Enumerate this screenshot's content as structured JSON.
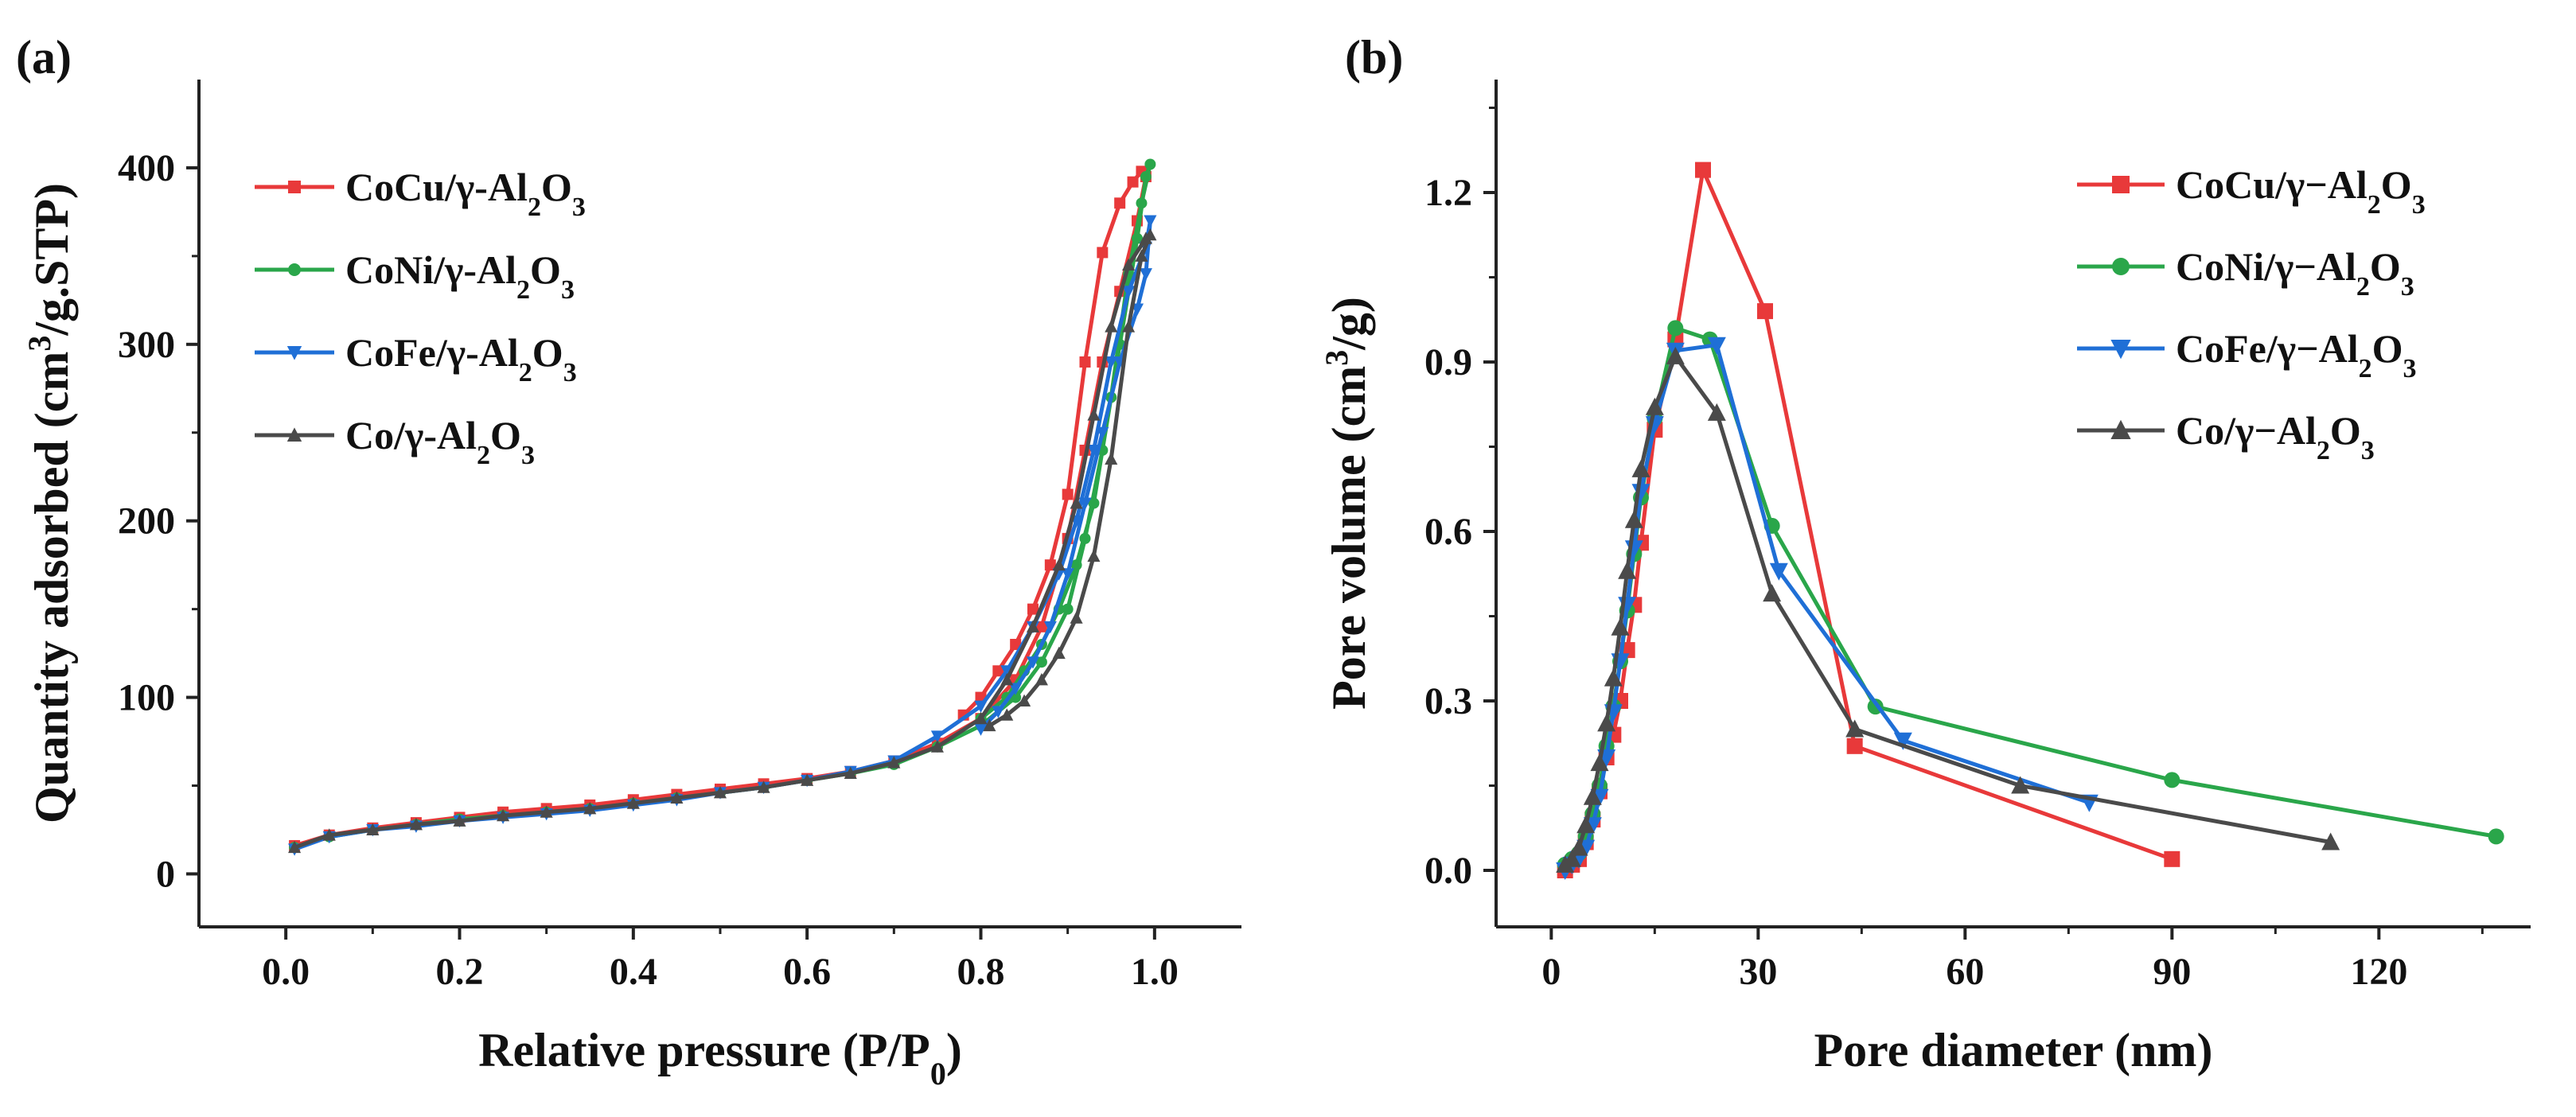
{
  "chart_data": [
    {
      "type": "line",
      "panel_label": "(a)",
      "xlabel": "Relative pressure (P/P",
      "xlabel_sub": "0",
      "xlabel_end": ")",
      "ylabel": "Quantity adsorbed (cm",
      "ylabel_sup": "3",
      "ylabel_end": "/g.STP)",
      "xlim": [
        -0.1,
        1.1
      ],
      "ylim": [
        -30,
        450
      ],
      "xticks": [
        0.0,
        0.2,
        0.4,
        0.6,
        0.8,
        1.0
      ],
      "xtick_labels": [
        "0.0",
        "0.2",
        "0.4",
        "0.6",
        "0.8",
        "1.0"
      ],
      "yticks": [
        0,
        100,
        200,
        300,
        400
      ],
      "ytick_labels": [
        "0",
        "100",
        "200",
        "300",
        "400"
      ],
      "legend_position": "top-left",
      "series": [
        {
          "name": "CoCu/γ-Al",
          "sub": "2",
          "mid": "O",
          "sub2": "3",
          "color": "#e8393a",
          "marker": "square",
          "x": [
            0.01,
            0.05,
            0.1,
            0.15,
            0.2,
            0.25,
            0.3,
            0.35,
            0.4,
            0.45,
            0.5,
            0.55,
            0.6,
            0.65,
            0.7,
            0.75,
            0.8,
            0.84,
            0.87,
            0.9,
            0.92,
            0.94,
            0.96,
            0.98,
            0.99,
            0.985,
            0.975,
            0.96,
            0.94,
            0.92,
            0.9,
            0.88,
            0.86,
            0.84,
            0.82,
            0.8,
            0.78
          ],
          "y": [
            16,
            22,
            26,
            29,
            32,
            35,
            37,
            39,
            42,
            45,
            48,
            51,
            54,
            58,
            64,
            74,
            88,
            110,
            140,
            190,
            240,
            290,
            330,
            370,
            395,
            398,
            392,
            380,
            352,
            290,
            215,
            175,
            150,
            130,
            115,
            100,
            90
          ]
        },
        {
          "name": "CoNi/γ-Al",
          "sub": "2",
          "mid": "O",
          "sub2": "3",
          "color": "#2aa64a",
          "marker": "circle",
          "x": [
            0.01,
            0.05,
            0.1,
            0.15,
            0.2,
            0.25,
            0.3,
            0.35,
            0.4,
            0.45,
            0.5,
            0.55,
            0.6,
            0.65,
            0.7,
            0.75,
            0.8,
            0.84,
            0.87,
            0.9,
            0.92,
            0.94,
            0.96,
            0.98,
            0.99,
            0.995,
            0.985,
            0.97,
            0.95,
            0.93,
            0.91,
            0.89,
            0.87,
            0.85,
            0.83,
            0.8
          ],
          "y": [
            15,
            21,
            25,
            28,
            31,
            33,
            35,
            37,
            40,
            43,
            46,
            49,
            53,
            57,
            62,
            72,
            84,
            100,
            120,
            150,
            190,
            240,
            300,
            360,
            395,
            402,
            380,
            340,
            270,
            210,
            175,
            150,
            130,
            115,
            100,
            88
          ]
        },
        {
          "name": "CoFe/γ-Al",
          "sub": "2",
          "mid": "O",
          "sub2": "3",
          "color": "#1f6fd6",
          "marker": "triangle-down",
          "x": [
            0.01,
            0.05,
            0.1,
            0.15,
            0.2,
            0.25,
            0.3,
            0.35,
            0.4,
            0.45,
            0.5,
            0.55,
            0.6,
            0.65,
            0.7,
            0.75,
            0.8,
            0.83,
            0.86,
            0.89,
            0.91,
            0.93,
            0.95,
            0.97,
            0.99,
            0.995,
            0.99,
            0.98,
            0.96,
            0.94,
            0.92,
            0.9,
            0.88,
            0.86,
            0.84,
            0.82,
            0.8
          ],
          "y": [
            14,
            21,
            25,
            27,
            30,
            32,
            34,
            36,
            39,
            42,
            46,
            49,
            53,
            58,
            64,
            78,
            95,
            115,
            140,
            170,
            200,
            240,
            290,
            330,
            355,
            370,
            340,
            320,
            290,
            250,
            210,
            170,
            140,
            120,
            105,
            92,
            82
          ]
        },
        {
          "name": "Co/γ-Al",
          "sub": "2",
          "mid": "O",
          "sub2": "3",
          "color": "#4a4a4a",
          "marker": "triangle-up",
          "x": [
            0.01,
            0.05,
            0.1,
            0.15,
            0.2,
            0.25,
            0.3,
            0.35,
            0.4,
            0.45,
            0.5,
            0.55,
            0.6,
            0.65,
            0.7,
            0.75,
            0.8,
            0.83,
            0.86,
            0.89,
            0.91,
            0.93,
            0.95,
            0.97,
            0.99,
            0.995,
            0.985,
            0.97,
            0.95,
            0.93,
            0.91,
            0.89,
            0.87,
            0.85,
            0.83,
            0.81
          ],
          "y": [
            15,
            22,
            25,
            28,
            30,
            33,
            35,
            37,
            40,
            43,
            46,
            49,
            53,
            57,
            63,
            72,
            88,
            110,
            140,
            175,
            210,
            260,
            310,
            345,
            360,
            362,
            350,
            310,
            235,
            180,
            145,
            125,
            110,
            98,
            90,
            84
          ]
        }
      ]
    },
    {
      "type": "line",
      "panel_label": "(b)",
      "xlabel": "Pore diameter (nm)",
      "ylabel": "Pore volume (cm",
      "ylabel_sup": "3",
      "ylabel_end": "/g)",
      "xlim": [
        -8,
        142
      ],
      "ylim": [
        -0.1,
        1.4
      ],
      "xticks": [
        0,
        30,
        60,
        90,
        120
      ],
      "xtick_labels": [
        "0",
        "30",
        "60",
        "90",
        "120"
      ],
      "yticks": [
        0.0,
        0.3,
        0.6,
        0.9,
        1.2
      ],
      "ytick_labels": [
        "0.0",
        "0.3",
        "0.6",
        "0.9",
        "1.2"
      ],
      "legend_position": "top-right",
      "series": [
        {
          "name": "CoCu/γ−Al",
          "sub": "2",
          "mid": "O",
          "sub2": "3",
          "color": "#e8393a",
          "marker": "square",
          "x": [
            2,
            3,
            4,
            5,
            6,
            7,
            8,
            9,
            10,
            11,
            12,
            13,
            15,
            18,
            22,
            31,
            44,
            90
          ],
          "y": [
            0.0,
            0.01,
            0.02,
            0.05,
            0.09,
            0.14,
            0.2,
            0.24,
            0.3,
            0.39,
            0.47,
            0.58,
            0.78,
            0.94,
            1.24,
            0.99,
            0.22,
            0.02
          ]
        },
        {
          "name": "CoNi/γ−Al",
          "sub": "2",
          "mid": "O",
          "sub2": "3",
          "color": "#2aa64a",
          "marker": "circle",
          "x": [
            2,
            3,
            4,
            5,
            6,
            7,
            8,
            9,
            10,
            11,
            12,
            13,
            15,
            18,
            23,
            32,
            47,
            90,
            137
          ],
          "y": [
            0.01,
            0.02,
            0.03,
            0.06,
            0.1,
            0.15,
            0.22,
            0.29,
            0.37,
            0.46,
            0.56,
            0.66,
            0.8,
            0.96,
            0.94,
            0.61,
            0.29,
            0.16,
            0.06
          ]
        },
        {
          "name": "CoFe/γ−Al",
          "sub": "2",
          "mid": "O",
          "sub2": "3",
          "color": "#1f6fd6",
          "marker": "triangle-down",
          "x": [
            2,
            3,
            4,
            5,
            6,
            7,
            8,
            9,
            10,
            11,
            12,
            13,
            15,
            18,
            24,
            33,
            51,
            78
          ],
          "y": [
            0.0,
            0.01,
            0.02,
            0.04,
            0.08,
            0.13,
            0.2,
            0.28,
            0.37,
            0.47,
            0.57,
            0.67,
            0.79,
            0.92,
            0.93,
            0.53,
            0.23,
            0.12
          ]
        },
        {
          "name": "Co/γ−Al",
          "sub": "2",
          "mid": "O",
          "sub2": "3",
          "color": "#4a4a4a",
          "marker": "triangle-up",
          "x": [
            2,
            3,
            4,
            5,
            6,
            7,
            8,
            9,
            10,
            11,
            12,
            13,
            15,
            18,
            24,
            32,
            44,
            68,
            113
          ],
          "y": [
            0.01,
            0.02,
            0.04,
            0.08,
            0.13,
            0.19,
            0.26,
            0.34,
            0.43,
            0.53,
            0.62,
            0.71,
            0.82,
            0.91,
            0.81,
            0.49,
            0.25,
            0.15,
            0.05
          ]
        }
      ]
    }
  ]
}
